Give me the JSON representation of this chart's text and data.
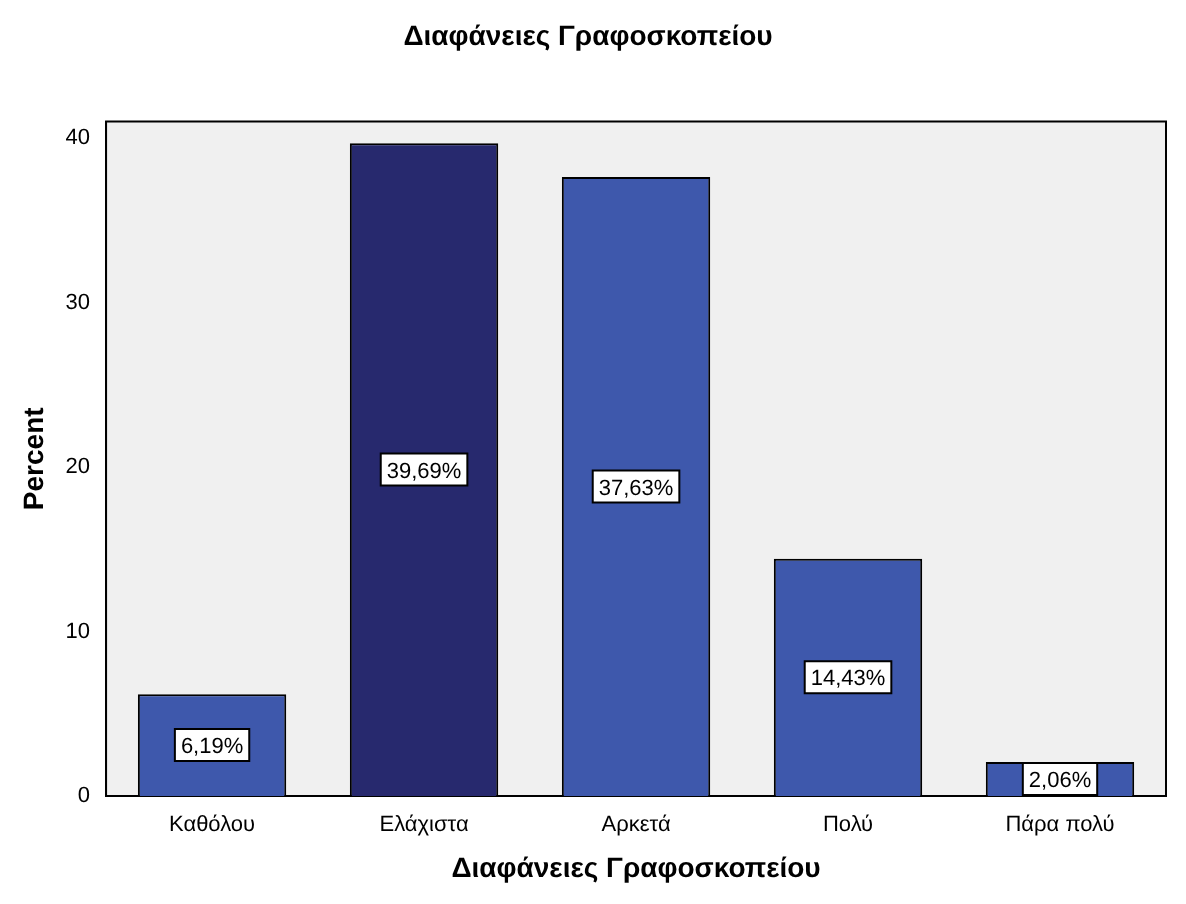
{
  "chart_data": {
    "type": "bar",
    "title": "Διαφάνειες Γραφοσκοπείου",
    "xlabel": "Διαφάνειες Γραφοσκοπείου",
    "ylabel": "Percent",
    "categories": [
      "Καθόλου",
      "Ελάχιστα",
      "Αρκετά",
      "Πολύ",
      "Πάρα πολύ"
    ],
    "values": [
      6.19,
      39.69,
      37.63,
      14.43,
      2.06
    ],
    "value_labels": [
      "6,19%",
      "39,69%",
      "37,63%",
      "14,43%",
      "2,06%"
    ],
    "colors": [
      "#3e58ac",
      "#27296e",
      "#3e58ac",
      "#3e58ac",
      "#3e58ac"
    ],
    "ylim": [
      0,
      41
    ],
    "yticks": [
      0,
      10,
      20,
      30,
      40
    ],
    "grid": false,
    "legend": false
  }
}
